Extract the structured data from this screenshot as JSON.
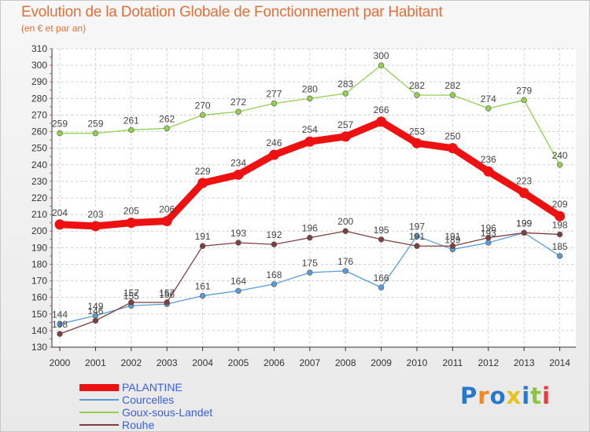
{
  "header": {
    "title": "Evolution de la Dotation Globale de Fonctionnement par Habitant",
    "subtitle": "(en € et par an)"
  },
  "logo": {
    "text": "Proxiti",
    "colors": [
      "#2a78c8",
      "#f08a24",
      "#2a78c8",
      "#e6c31f",
      "#2a78c8",
      "#8cc63e",
      "#e23c3c"
    ]
  },
  "chart_data": {
    "type": "line",
    "title": "Evolution de la Dotation Globale de Fonctionnement par Habitant",
    "subtitle": "(en € et par an)",
    "xlabel": "",
    "ylabel": "",
    "x": [
      "2000",
      "2001",
      "2002",
      "2003",
      "2004",
      "2005",
      "2006",
      "2007",
      "2008",
      "2009",
      "2010",
      "2011",
      "2012",
      "2013",
      "2014"
    ],
    "ylim": [
      130,
      310
    ],
    "yticks": [
      130,
      140,
      150,
      160,
      170,
      180,
      190,
      200,
      210,
      220,
      230,
      240,
      250,
      260,
      270,
      280,
      290,
      300,
      310
    ],
    "grid": true,
    "legend_position": "bottom-left",
    "series": [
      {
        "name": "PALANTINE",
        "color": "#ee1111",
        "emphasis": true,
        "values": [
          204,
          203,
          205,
          206,
          229,
          234,
          246,
          254,
          257,
          266,
          253,
          250,
          236,
          223,
          209
        ]
      },
      {
        "name": "Courcelles",
        "color": "#5b9bd5",
        "emphasis": false,
        "values": [
          144,
          149,
          155,
          156,
          161,
          164,
          168,
          175,
          176,
          166,
          197,
          189,
          193,
          199,
          185
        ]
      },
      {
        "name": "Goux-sous-Landet",
        "color": "#92d050",
        "emphasis": false,
        "values": [
          259,
          259,
          261,
          262,
          270,
          272,
          277,
          280,
          283,
          300,
          282,
          282,
          274,
          279,
          240
        ]
      },
      {
        "name": "Rouhe",
        "color": "#7f3f3f",
        "emphasis": false,
        "values": [
          138,
          146,
          157,
          157,
          191,
          193,
          192,
          196,
          200,
          195,
          191,
          191,
          196,
          199,
          198
        ]
      }
    ]
  }
}
